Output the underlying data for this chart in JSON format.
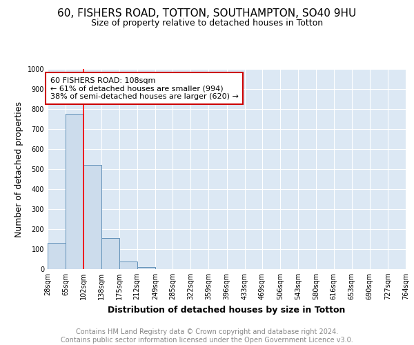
{
  "title": "60, FISHERS ROAD, TOTTON, SOUTHAMPTON, SO40 9HU",
  "subtitle": "Size of property relative to detached houses in Totton",
  "xlabel": "Distribution of detached houses by size in Totton",
  "ylabel": "Number of detached properties",
  "footer_line1": "Contains HM Land Registry data © Crown copyright and database right 2024.",
  "footer_line2": "Contains public sector information licensed under the Open Government Licence v3.0.",
  "bin_edges": [
    28,
    65,
    102,
    138,
    175,
    212,
    249,
    285,
    322,
    359,
    396,
    433,
    469,
    506,
    543,
    580,
    616,
    653,
    690,
    727,
    764
  ],
  "bin_labels": [
    "28sqm",
    "65sqm",
    "102sqm",
    "138sqm",
    "175sqm",
    "212sqm",
    "249sqm",
    "285sqm",
    "322sqm",
    "359sqm",
    "396sqm",
    "433sqm",
    "469sqm",
    "506sqm",
    "543sqm",
    "580sqm",
    "616sqm",
    "653sqm",
    "690sqm",
    "727sqm",
    "764sqm"
  ],
  "bar_heights": [
    130,
    775,
    520,
    155,
    38,
    12,
    0,
    0,
    0,
    0,
    0,
    0,
    0,
    0,
    0,
    0,
    0,
    0,
    0,
    0
  ],
  "bar_color": "#ccdcec",
  "bar_edge_color": "#6090b8",
  "background_color": "#dce8f4",
  "grid_color": "#ffffff",
  "red_line_x": 102,
  "annotation_text_line1": "60 FISHERS ROAD: 108sqm",
  "annotation_text_line2": "← 61% of detached houses are smaller (994)",
  "annotation_text_line3": "38% of semi-detached houses are larger (620) →",
  "annotation_box_color": "#ffffff",
  "annotation_box_edge_color": "#cc0000",
  "ylim": [
    0,
    1000
  ],
  "yticks": [
    0,
    100,
    200,
    300,
    400,
    500,
    600,
    700,
    800,
    900,
    1000
  ],
  "title_fontsize": 11,
  "subtitle_fontsize": 9,
  "ylabel_fontsize": 9,
  "xlabel_fontsize": 9,
  "tick_fontsize": 7,
  "footer_fontsize": 7
}
